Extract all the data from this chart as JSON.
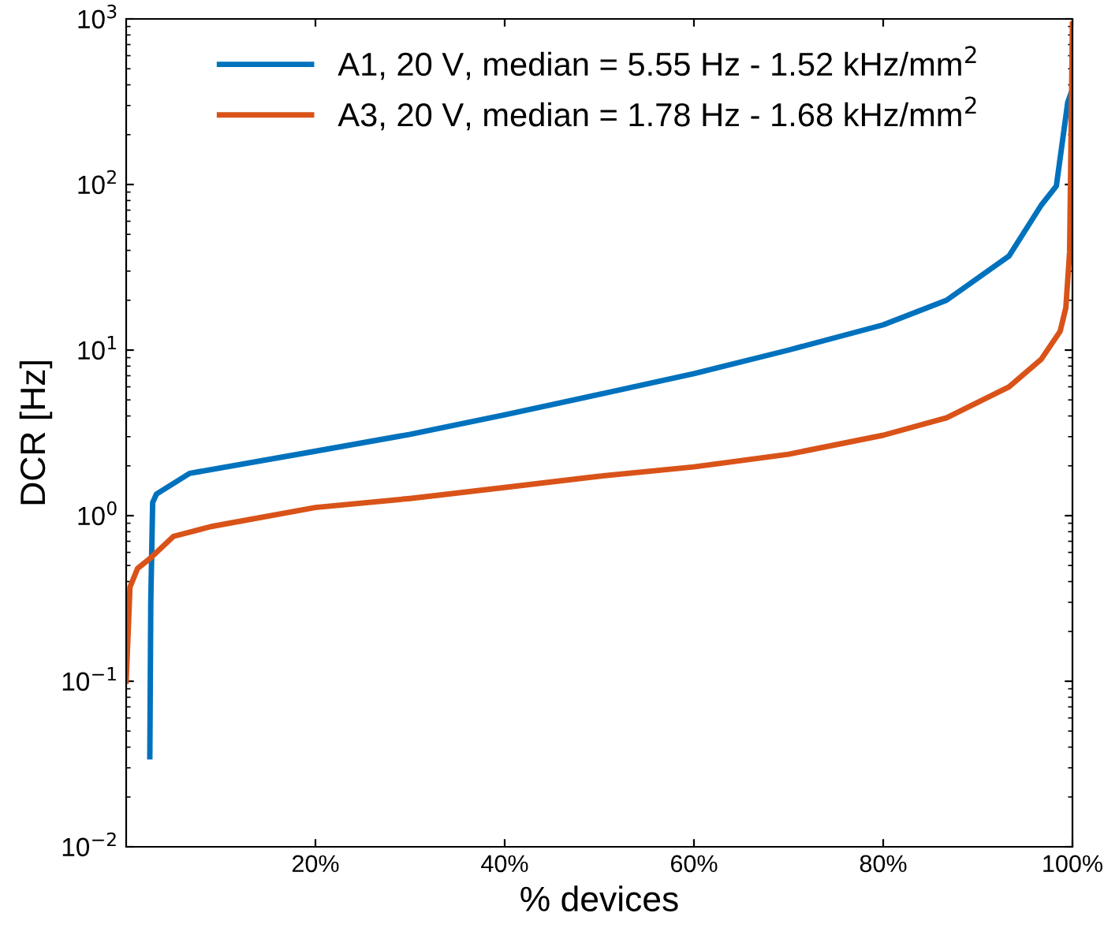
{
  "chart_data": {
    "type": "line",
    "xlabel": "% devices",
    "ylabel": "DCR [Hz]",
    "log": "y",
    "xlim": [
      0,
      100
    ],
    "ylim": [
      0.01,
      1000
    ],
    "xticks": [
      {
        "value": 20,
        "label": "20%"
      },
      {
        "value": 40,
        "label": "40%"
      },
      {
        "value": 60,
        "label": "60%"
      },
      {
        "value": 80,
        "label": "80%"
      },
      {
        "value": 100,
        "label": "100%"
      }
    ],
    "yticks": [
      {
        "value": 0.01,
        "label": "10$^{−2}$"
      },
      {
        "value": 0.1,
        "label": "10$^{−1}$"
      },
      {
        "value": 1,
        "label": "10$^{0}$"
      },
      {
        "value": 10,
        "label": "10$^{1}$"
      },
      {
        "value": 100,
        "label": "10$^{2}$"
      },
      {
        "value": 1000,
        "label": "10$^{3}$"
      }
    ],
    "grid": false,
    "legend": "top",
    "marker": "none",
    "line_style": "solid",
    "series": [
      {
        "name": "A1, 20 V, median = 5.55 Hz - 1.52 kHz/mm$^{2}$",
        "color": "#0072bd",
        "x": [
          2.5,
          2.6,
          2.8,
          3.2,
          6.7,
          20,
          30,
          40,
          50,
          60,
          70,
          80,
          86.7,
          93.3,
          96.7,
          98.3,
          99.5,
          99.8
        ],
        "values": [
          0.035,
          0.3,
          1.2,
          1.35,
          1.8,
          2.45,
          3.1,
          4.06,
          5.4,
          7.2,
          10,
          14.2,
          20,
          37,
          75,
          98,
          313,
          350
        ]
      },
      {
        "name": "A3, 20 V, median = 1.78 Hz - 1.68 kHz/mm$^{2}$",
        "color": "#d95319",
        "x": [
          0,
          0.4,
          1.2,
          2.5,
          5,
          9,
          20,
          30,
          40,
          50,
          60,
          70,
          80,
          86.7,
          93.3,
          96.7,
          98.7,
          99.3,
          99.7,
          100
        ],
        "values": [
          0.1,
          0.37,
          0.48,
          0.55,
          0.75,
          0.86,
          1.12,
          1.27,
          1.48,
          1.73,
          1.97,
          2.35,
          3.06,
          3.9,
          6.0,
          8.8,
          13,
          18,
          39,
          930
        ]
      }
    ]
  }
}
